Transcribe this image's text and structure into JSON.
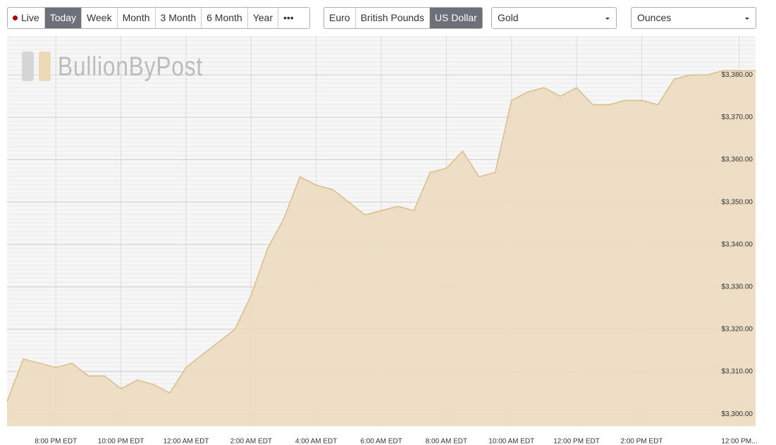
{
  "toolbar": {
    "periods": [
      "Live",
      "Today",
      "Week",
      "Month",
      "3 Month",
      "6 Month",
      "Year"
    ],
    "more": "•••",
    "active_period": 1,
    "currencies": [
      "Euro",
      "British Pounds",
      "US Dollar"
    ],
    "active_currency": 2,
    "metal": "Gold",
    "unit": "Ounces"
  },
  "logo": "BullionByPost",
  "chart_data": {
    "type": "area",
    "color": "#d9bd88",
    "fill": "#ecdcc0",
    "grid": true,
    "categories": [
      null,
      null,
      null,
      "8:00 PM EDT",
      null,
      null,
      null,
      "10:00 PM EDT",
      null,
      null,
      null,
      "12:00 AM EDT",
      null,
      null,
      null,
      "2:00 AM EDT",
      null,
      null,
      null,
      "4:00 AM EDT",
      null,
      null,
      null,
      "6:00 AM EDT",
      null,
      null,
      null,
      "8:00 AM EDT",
      null,
      null,
      null,
      "10:00 AM EDT",
      null,
      null,
      null,
      "12:00 PM EDT",
      null,
      null,
      null,
      "2:00 PM EDT",
      null,
      null,
      null,
      null,
      null,
      "12:00 PM...",
      null
    ],
    "series": [
      {
        "values": [
          3303,
          3313,
          3312,
          3311,
          3312,
          3309,
          3309,
          3306,
          3308,
          3307,
          3305,
          3311,
          3314,
          3317,
          3320,
          3328,
          3339,
          3346,
          3356,
          3354,
          3353,
          3350,
          3347,
          3348,
          3349,
          3348,
          3357,
          3358,
          3362,
          3356,
          3357,
          3374,
          3376,
          3377,
          3375,
          3377,
          3373,
          3373,
          3374,
          3374,
          3373,
          3379,
          3380,
          3380,
          3381,
          3381,
          3381
        ]
      }
    ],
    "ylim": [
      3297.2,
      3389.2
    ],
    "yticks": [
      {
        "value": 3300,
        "label": "$3,300.00"
      },
      {
        "value": 3310,
        "label": "$3,310.00"
      },
      {
        "value": 3320,
        "label": "$3,320.00"
      },
      {
        "value": 3330,
        "label": "$3,330.00"
      },
      {
        "value": 3340,
        "label": "$3,340.00"
      },
      {
        "value": 3350,
        "label": "$3,350.00"
      },
      {
        "value": 3360,
        "label": "$3,360.00"
      },
      {
        "value": 3370,
        "label": "$3,370.00"
      },
      {
        "value": 3380,
        "label": "$3,380.00"
      }
    ]
  }
}
